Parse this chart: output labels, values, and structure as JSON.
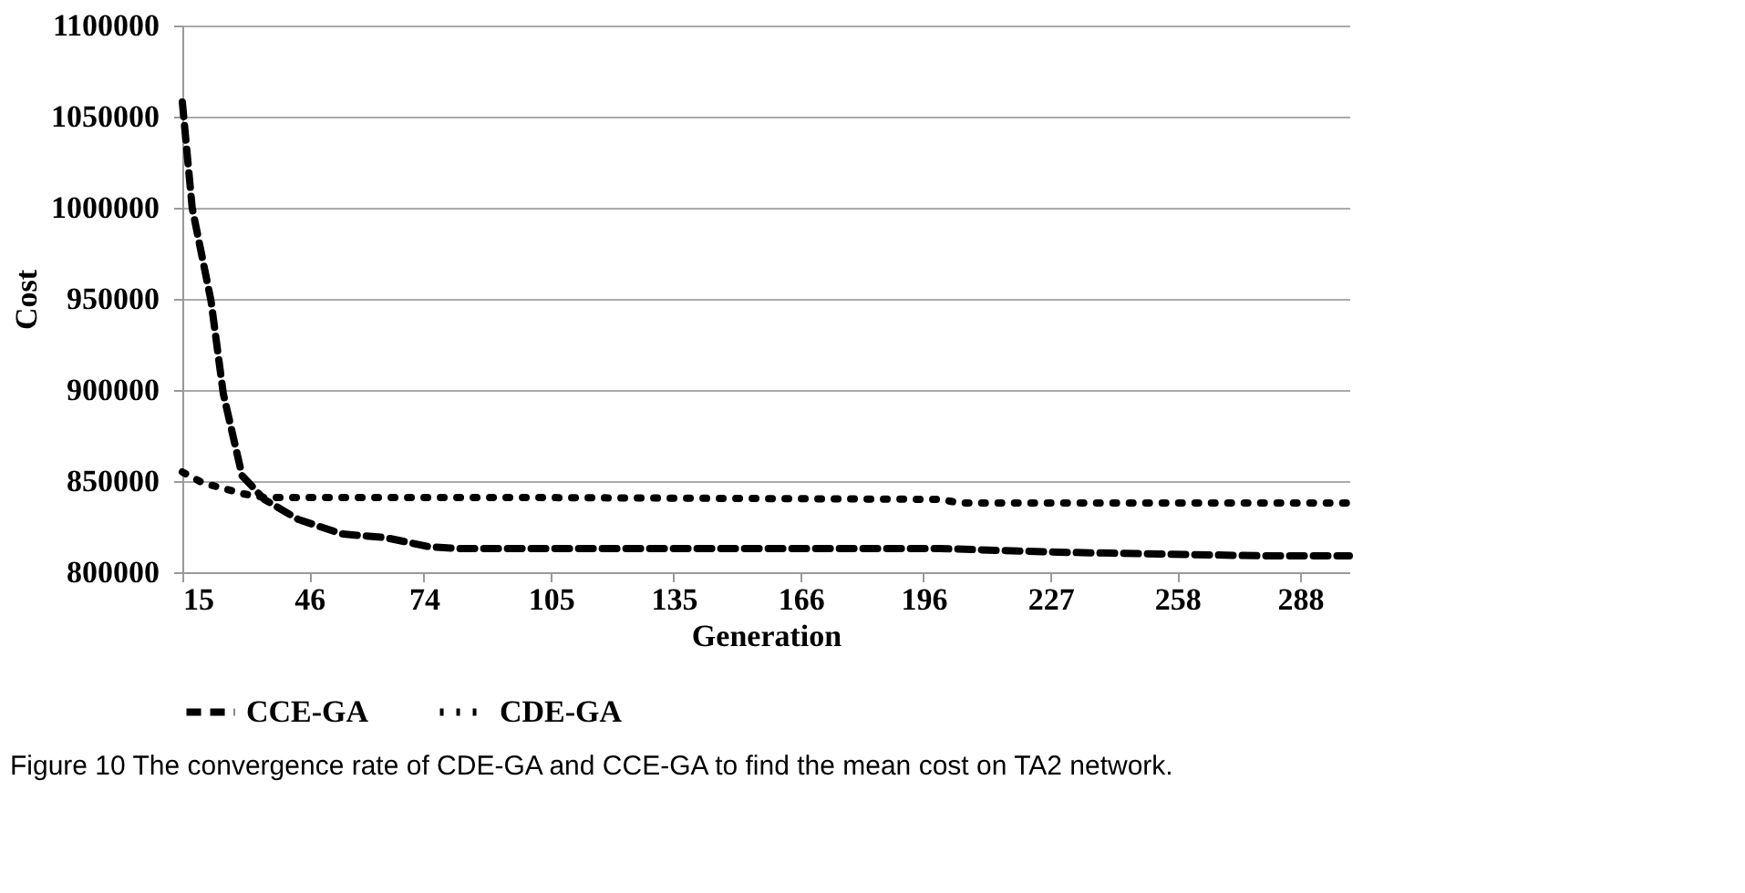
{
  "chart_data": {
    "type": "line",
    "xlabel": "Generation",
    "ylabel": "Cost",
    "xlim": [
      15,
      300
    ],
    "xticks": [
      15,
      46,
      74,
      105,
      135,
      166,
      196,
      227,
      258,
      288
    ],
    "ylim": [
      800000,
      1100000
    ],
    "yticks": [
      800000,
      850000,
      900000,
      950000,
      1000000,
      1050000,
      1100000
    ],
    "grid": "y",
    "legend": "bottom",
    "marker": "none",
    "series": [
      {
        "name": "CCE-GA",
        "color": "#000000",
        "line_style": "dashed",
        "x": [
          15,
          17.4,
          22,
          25,
          29.6,
          35,
          43.3,
          54,
          64.6,
          75.3,
          82.9,
          200,
          229,
          279,
          300
        ],
        "values": [
          1058000,
          1000000,
          949000,
          898000,
          853000,
          840000,
          829000,
          821000,
          819000,
          814000,
          813000,
          813000,
          811000,
          809000,
          809000
        ]
      },
      {
        "name": "CDE-GA",
        "color": "#000000",
        "line_style": "dotted",
        "x": [
          15,
          20,
          25,
          30,
          35,
          100,
          200,
          205,
          300
        ],
        "values": [
          855000,
          849000,
          846000,
          843000,
          841000,
          841000,
          840000,
          838000,
          838000
        ]
      }
    ],
    "annotations": [
      "Figure 10 The convergence rate of CDE-GA and CCE-GA to find the mean cost on TA2 network."
    ]
  }
}
